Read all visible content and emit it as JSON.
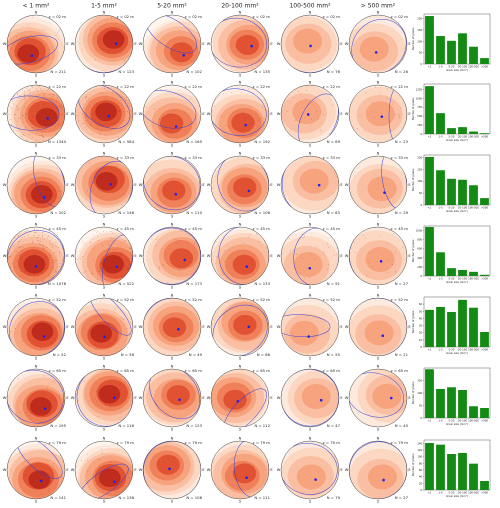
{
  "chart_data": {
    "type": "bar",
    "columns": [
      "< 1 mm²",
      "1-5 mm²",
      "5-20 mm²",
      "20-100 mm²",
      "100-500 mm²",
      "> 500 mm²"
    ],
    "directions": [
      "N",
      "E",
      "S",
      "W"
    ],
    "categories": [
      "<1",
      "1-5",
      "5-20",
      "20-100",
      "100-500",
      ">500"
    ],
    "ylabel": "Number of grains",
    "xlabel": "Grain size (mm²)",
    "color": "#138a13",
    "rows": [
      {
        "depth": "z = 02 m",
        "values": [
          211,
          123,
          102,
          135,
          76,
          26
        ],
        "value_labels": [
          "N = 211",
          "N = 123",
          "N = 102",
          "N = 135",
          "N = 76",
          "N = 26"
        ],
        "ylim": [
          0,
          220
        ],
        "yticks": [
          0,
          50,
          100,
          150,
          200
        ]
      },
      {
        "depth": "z = 22 m",
        "values": [
          1340,
          584,
          165,
          192,
          69,
          23
        ],
        "value_labels": [
          "N = 1340",
          "N = 584",
          "N = 165",
          "N = 192",
          "N = 69",
          "N = 23"
        ],
        "ylim": [
          0,
          1400
        ],
        "yticks": [
          0,
          250,
          500,
          750,
          1000,
          1250
        ]
      },
      {
        "depth": "z = 33 m",
        "values": [
          202,
          146,
          110,
          106,
          83,
          29
        ],
        "value_labels": [
          "N = 202",
          "N = 146",
          "N = 110",
          "N = 106",
          "N = 83",
          "N = 29"
        ],
        "ylim": [
          0,
          210
        ],
        "yticks": [
          0,
          50,
          100,
          150,
          200
        ]
      },
      {
        "depth": "z = 45 m",
        "values": [
          1078,
          522,
          173,
          133,
          91,
          27
        ],
        "value_labels": [
          "N = 1078",
          "N = 522",
          "N = 173",
          "N = 133",
          "N = 91",
          "N = 27"
        ],
        "ylim": [
          0,
          1100
        ],
        "yticks": [
          0,
          200,
          400,
          600,
          800,
          1000
        ]
      },
      {
        "depth": "z = 52 m",
        "values": [
          52,
          56,
          49,
          66,
          55,
          21
        ],
        "value_labels": [
          "N = 52",
          "N = 56",
          "N = 49",
          "N = 66",
          "N = 55",
          "N = 21"
        ],
        "ylim": [
          0,
          70
        ],
        "yticks": [
          0,
          10,
          20,
          30,
          40,
          50,
          60
        ]
      },
      {
        "depth": "z = 65 m",
        "values": [
          195,
          116,
          123,
          112,
          47,
          40
        ],
        "value_labels": [
          "N = 195",
          "N = 116",
          "N = 123",
          "N = 112",
          "N = 47",
          "N = 40"
        ],
        "ylim": [
          0,
          200
        ],
        "yticks": [
          0,
          50,
          100,
          150
        ]
      },
      {
        "depth": "z = 79 m",
        "values": [
          141,
          136,
          108,
          111,
          79,
          27
        ],
        "value_labels": [
          "N = 141",
          "N = 136",
          "N = 108",
          "N = 111",
          "N = 79",
          "N = 27"
        ],
        "ylim": [
          0,
          150
        ],
        "yticks": [
          0,
          20,
          40,
          60,
          80,
          100,
          120,
          140
        ]
      }
    ]
  }
}
